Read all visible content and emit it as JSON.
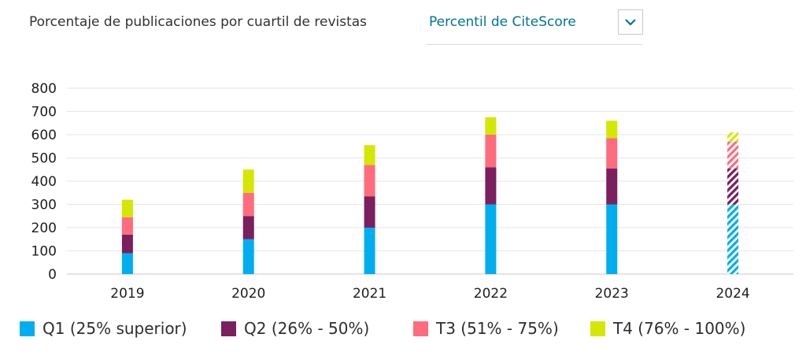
{
  "header": {
    "title": "Porcentaje de publicaciones por cuartil de revistas",
    "selector_value": "Percentil de CiteScore"
  },
  "chart_data": {
    "type": "bar",
    "stacked": true,
    "categories": [
      "2019",
      "2020",
      "2021",
      "2022",
      "2023",
      "2024"
    ],
    "series": [
      {
        "name": "Q1 (25% superior)",
        "color": "#00aeef",
        "values": [
          90,
          150,
          200,
          300,
          300,
          300
        ]
      },
      {
        "name": "Q2 (26% - 50%)",
        "color": "#7b1f5e",
        "values": [
          80,
          100,
          135,
          160,
          155,
          155
        ]
      },
      {
        "name": "T3 (51% - 75%)",
        "color": "#ff6c7d",
        "values": [
          75,
          100,
          135,
          140,
          130,
          115
        ]
      },
      {
        "name": "T4 (76% - 100%)",
        "color": "#d3e700",
        "values": [
          75,
          100,
          85,
          75,
          75,
          40
        ]
      }
    ],
    "projected_categories": [
      "2024"
    ],
    "ylim": [
      0,
      800
    ],
    "yticks": [
      0,
      100,
      200,
      300,
      400,
      500,
      600,
      700,
      800
    ],
    "grid": true,
    "legend_position": "bottom"
  }
}
